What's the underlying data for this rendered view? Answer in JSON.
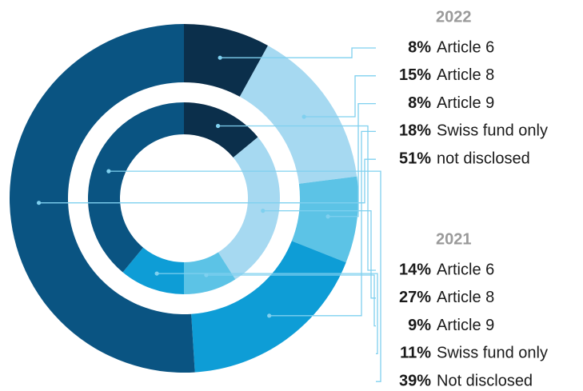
{
  "chart_data": {
    "type": "donut",
    "colors": [
      "#0b2f4b",
      "#a6d9f1",
      "#5cc3e6",
      "#0e9dd6",
      "#0a5482"
    ],
    "series": [
      {
        "name": "2022",
        "categories": [
          "Article 6",
          "Article 8",
          "Article 9",
          "Swiss fund only",
          "not disclosed"
        ],
        "values": [
          8,
          15,
          8,
          18,
          51
        ],
        "value_labels": [
          "8%",
          "15%",
          "8%",
          "18%",
          "51%"
        ]
      },
      {
        "name": "2021",
        "categories": [
          "Article 6",
          "Article 8",
          "Article 9",
          "Swiss fund only",
          "Not disclosed"
        ],
        "values": [
          14,
          27,
          9,
          11,
          39
        ],
        "value_labels": [
          "14%",
          "27%",
          "9%",
          "11%",
          "39%"
        ]
      }
    ]
  }
}
